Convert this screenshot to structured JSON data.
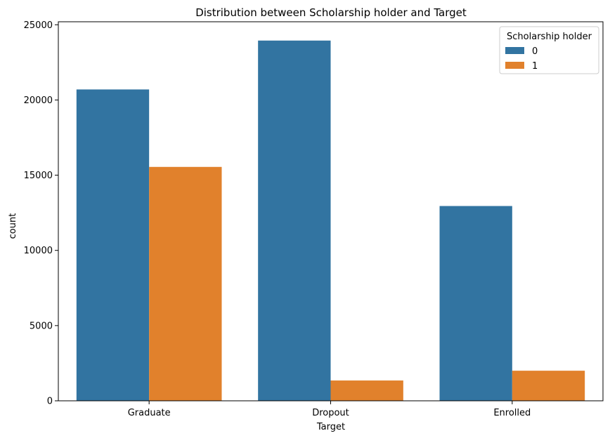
{
  "chart_data": {
    "type": "bar",
    "title": "Distribution between Scholarship holder and Target",
    "xlabel": "Target",
    "ylabel": "count",
    "categories": [
      "Graduate",
      "Dropout",
      "Enrolled"
    ],
    "series": [
      {
        "name": "0",
        "values": [
          20700,
          23950,
          12950
        ],
        "color": "#3274a1"
      },
      {
        "name": "1",
        "values": [
          15550,
          1350,
          2000
        ],
        "color": "#e1812c"
      }
    ],
    "ylim": [
      0,
      25200
    ],
    "yticks": [
      0,
      5000,
      10000,
      15000,
      20000,
      25000
    ],
    "legend": {
      "title": "Scholarship holder",
      "placement": "top-right"
    },
    "grid": false
  }
}
